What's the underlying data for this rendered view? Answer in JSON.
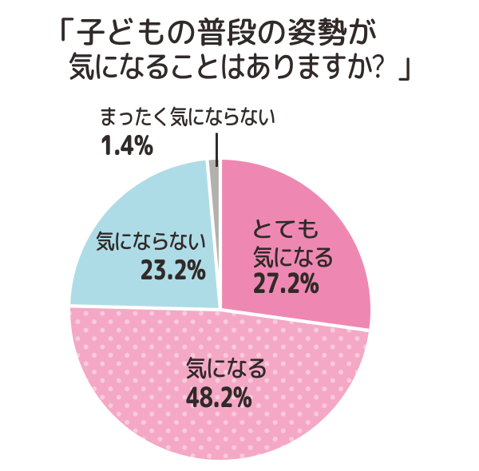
{
  "chart_data": {
    "type": "pie",
    "title_lines": [
      "「子どもの普段の姿勢が",
      "気になることはありますか？」"
    ],
    "unit": "%",
    "start_angle_deg": 0,
    "direction": "clockwise",
    "separator_color": "#ffffff",
    "background_color": "#ffffff",
    "text_color": "#312a28",
    "slices": [
      {
        "name": "とても気になる",
        "value": 27.2,
        "value_label": "27.2%",
        "color": "#ee88b2",
        "label_lines": [
          "とても",
          "気になる"
        ]
      },
      {
        "name": "気になる",
        "value": 48.2,
        "value_label": "48.2%",
        "color": "#f4a8c5",
        "pattern": "polka-dots",
        "pattern_dot_color": "#f9cbdc",
        "label_lines": [
          "気になる"
        ]
      },
      {
        "name": "気にならない",
        "value": 23.2,
        "value_label": "23.2%",
        "color": "#aedce6",
        "label_lines": [
          "気にならない"
        ]
      },
      {
        "name": "まったく気にならない",
        "value": 1.4,
        "value_label": "1.4%",
        "color": "#b3b1ae",
        "label_lines": [
          "まったく気にならない"
        ],
        "callout": true
      }
    ]
  }
}
